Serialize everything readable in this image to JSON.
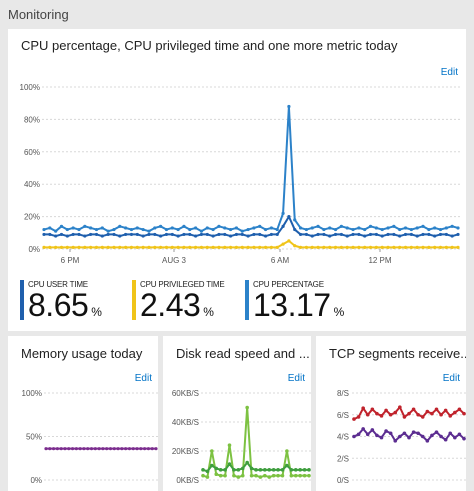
{
  "blade": {
    "title": "Monitoring"
  },
  "main_tile": {
    "title": "CPU percentage, CPU privileged time and one more metric today",
    "edit_label": "Edit",
    "metrics": [
      {
        "label": "CPU USER TIME",
        "value": "8.65",
        "unit": "%",
        "color": "#1f5fad"
      },
      {
        "label": "CPU PRIVILEGED TIME",
        "value": "2.43",
        "unit": "%",
        "color": "#f0c419"
      },
      {
        "label": "CPU PERCENTAGE",
        "value": "13.17",
        "unit": "%",
        "color": "#2c82c9"
      }
    ]
  },
  "memory_tile": {
    "title": "Memory usage today",
    "edit_label": "Edit"
  },
  "disk_tile": {
    "title": "Disk read speed and ...",
    "edit_label": "Edit"
  },
  "tcp_tile": {
    "title": "TCP segments receive...",
    "edit_label": "Edit"
  },
  "chart_data": [
    {
      "type": "line",
      "x_tick_labels": [
        "6 PM",
        "AUG 3",
        "6 AM",
        "12 PM"
      ],
      "y_tick_labels": [
        "0%",
        "20%",
        "40%",
        "60%",
        "80%",
        "100%"
      ],
      "ylim": [
        0,
        100
      ],
      "grid": true,
      "series": [
        {
          "name": "CPU PERCENTAGE",
          "color": "#2c82c9",
          "values": [
            12,
            13,
            11,
            14,
            12,
            13,
            12,
            14,
            13,
            12,
            13,
            11,
            12,
            14,
            13,
            12,
            13,
            12,
            11,
            13,
            14,
            12,
            13,
            12,
            14,
            12,
            13,
            11,
            13,
            12,
            14,
            13,
            12,
            13,
            11,
            12,
            13,
            14,
            12,
            13,
            12,
            22,
            88,
            18,
            13,
            12,
            13,
            14,
            12,
            13,
            12,
            14,
            13,
            12,
            13,
            12,
            14,
            13,
            12,
            13,
            14,
            12,
            13,
            12,
            13,
            14,
            12,
            13,
            12,
            13,
            14,
            13
          ]
        },
        {
          "name": "CPU USER TIME",
          "color": "#1f5fad",
          "values": [
            9,
            9,
            8,
            9,
            8,
            9,
            9,
            8,
            9,
            9,
            8,
            9,
            9,
            8,
            9,
            9,
            9,
            8,
            9,
            9,
            8,
            9,
            9,
            8,
            9,
            9,
            8,
            9,
            9,
            8,
            9,
            9,
            8,
            9,
            9,
            8,
            9,
            9,
            8,
            9,
            9,
            14,
            20,
            12,
            9,
            9,
            8,
            9,
            9,
            8,
            9,
            9,
            8,
            9,
            9,
            8,
            9,
            9,
            8,
            9,
            9,
            8,
            9,
            9,
            8,
            9,
            9,
            8,
            9,
            9,
            8,
            9
          ]
        },
        {
          "name": "CPU PRIVILEGED TIME",
          "color": "#f0c419",
          "values": [
            1,
            1,
            1,
            1,
            1,
            1,
            1,
            1,
            1,
            1,
            1,
            1,
            1,
            1,
            1,
            1,
            1,
            1,
            1,
            1,
            1,
            1,
            1,
            1,
            1,
            1,
            1,
            1,
            1,
            1,
            1,
            1,
            1,
            1,
            1,
            1,
            1,
            1,
            1,
            1,
            1,
            3,
            5,
            2,
            1,
            1,
            1,
            1,
            1,
            1,
            1,
            1,
            1,
            1,
            1,
            1,
            1,
            1,
            1,
            1,
            1,
            1,
            1,
            1,
            1,
            1,
            1,
            1,
            1,
            1,
            1,
            1
          ]
        }
      ]
    },
    {
      "type": "line",
      "y_tick_labels": [
        "0%",
        "50%",
        "100%"
      ],
      "ylim": [
        0,
        100
      ],
      "grid": true,
      "series": [
        {
          "color": "#7b2d8e",
          "values": [
            36,
            36,
            36,
            36,
            36,
            36,
            36,
            36,
            36,
            36,
            36,
            36,
            36,
            36,
            36,
            36,
            36,
            36,
            36,
            36,
            36,
            36,
            36,
            36,
            36,
            36,
            36,
            36,
            36,
            36
          ]
        }
      ]
    },
    {
      "type": "line",
      "y_tick_labels": [
        "0KB/S",
        "20KB/S",
        "40KB/S",
        "60KB/S"
      ],
      "ylim": [
        0,
        60
      ],
      "grid": true,
      "series": [
        {
          "color": "#7dc242",
          "values": [
            3,
            2,
            20,
            4,
            3,
            3,
            24,
            3,
            2,
            3,
            50,
            3,
            3,
            2,
            3,
            2,
            3,
            3,
            3,
            20,
            3,
            3,
            3,
            3,
            3
          ]
        },
        {
          "color": "#3e9e3e",
          "values": [
            7,
            6,
            10,
            8,
            7,
            7,
            11,
            7,
            7,
            8,
            12,
            8,
            7,
            7,
            7,
            7,
            7,
            7,
            7,
            10,
            7,
            7,
            7,
            7,
            7
          ]
        }
      ]
    },
    {
      "type": "line",
      "y_tick_labels": [
        "0/S",
        "2/S",
        "4/S",
        "6/S",
        "8/S"
      ],
      "ylim": [
        0,
        8
      ],
      "grid": true,
      "series": [
        {
          "color": "#c0232c",
          "values": [
            5.6,
            5.8,
            6.6,
            6.0,
            6.5,
            6.1,
            5.9,
            6.4,
            6.0,
            6.2,
            6.7,
            5.8,
            6.1,
            6.5,
            6.0,
            5.8,
            6.3,
            6.1,
            6.5,
            6.0,
            6.4,
            5.9,
            6.2,
            6.5,
            6.1
          ]
        },
        {
          "color": "#5c2d91",
          "values": [
            4.0,
            4.2,
            4.7,
            4.2,
            4.6,
            4.1,
            3.9,
            4.5,
            4.3,
            3.6,
            4.0,
            4.3,
            3.9,
            4.4,
            4.3,
            4.0,
            3.6,
            4.1,
            4.4,
            4.0,
            3.7,
            4.3,
            3.9,
            4.2,
            3.8
          ]
        }
      ]
    }
  ]
}
